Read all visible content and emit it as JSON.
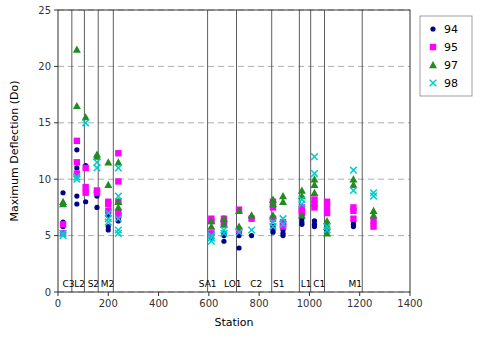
{
  "chart_data": {
    "type": "scatter",
    "xlabel": "Station",
    "ylabel": "Maximum Deflection (Do)",
    "xlim": [
      0,
      1400
    ],
    "ylim": [
      0.0,
      25.0
    ],
    "xticks": [
      0,
      200,
      400,
      600,
      800,
      1000,
      1200,
      1400
    ],
    "yticks": [
      0,
      5,
      10,
      15,
      20,
      25
    ],
    "grid": "y",
    "legend": "right",
    "vlines": [
      55,
      105,
      160,
      220,
      595,
      710,
      850,
      960,
      1005,
      1060,
      1210
    ],
    "annotations": [
      {
        "text": "C3",
        "x": 18,
        "y": 0.3
      },
      {
        "text": "L2",
        "x": 65,
        "y": 0.3
      },
      {
        "text": "S2",
        "x": 118,
        "y": 0.3
      },
      {
        "text": "M2",
        "x": 170,
        "y": 0.3
      },
      {
        "text": "SA1",
        "x": 560,
        "y": 0.3
      },
      {
        "text": "LO1",
        "x": 660,
        "y": 0.3
      },
      {
        "text": "C2",
        "x": 765,
        "y": 0.3
      },
      {
        "text": "S1",
        "x": 855,
        "y": 0.3
      },
      {
        "text": "L1",
        "x": 965,
        "y": 0.3
      },
      {
        "text": "C1",
        "x": 1015,
        "y": 0.3
      },
      {
        "text": "M1",
        "x": 1155,
        "y": 0.3
      }
    ],
    "series": [
      {
        "name": "94",
        "color": "#00008B",
        "marker": "circle",
        "x": [
          20,
          20,
          20,
          75,
          75,
          75,
          75,
          110,
          110,
          110,
          155,
          155,
          200,
          200,
          200,
          200,
          240,
          240,
          240,
          240,
          610,
          610,
          660,
          660,
          660,
          720,
          720,
          720,
          770,
          855,
          855,
          855,
          895,
          895,
          895,
          970,
          970,
          970,
          1020,
          1020,
          1020,
          1070,
          1070,
          1070,
          1175,
          1175,
          1175,
          1255,
          1255
        ],
        "values": [
          8.8,
          6.2,
          5.8,
          12.6,
          11.0,
          8.5,
          7.8,
          11.2,
          9.0,
          8.0,
          8.5,
          7.5,
          5.8,
          5.5,
          7.0,
          6.8,
          6.8,
          7.0,
          6.5,
          6.3,
          5.0,
          4.8,
          5.2,
          5.0,
          4.5,
          5.0,
          5.2,
          3.9,
          5.0,
          5.8,
          5.5,
          5.3,
          5.5,
          5.2,
          5.0,
          6.5,
          6.2,
          6.0,
          6.3,
          6.0,
          5.8,
          5.8,
          5.5,
          5.6,
          6.3,
          6.0,
          5.8,
          6.1,
          5.8
        ]
      },
      {
        "name": "95",
        "color": "#FF00FF",
        "marker": "square",
        "x": [
          20,
          20,
          75,
          75,
          75,
          110,
          110,
          110,
          155,
          155,
          200,
          200,
          200,
          240,
          240,
          240,
          240,
          240,
          610,
          610,
          610,
          660,
          660,
          660,
          720,
          720,
          770,
          855,
          855,
          855,
          895,
          895,
          895,
          970,
          970,
          970,
          1020,
          1020,
          1020,
          1070,
          1070,
          1070,
          1175,
          1175,
          1175,
          1255,
          1255
        ],
        "values": [
          6.0,
          5.2,
          13.4,
          11.5,
          10.5,
          11.0,
          9.3,
          8.8,
          9.0,
          8.8,
          8.0,
          7.8,
          7.2,
          12.3,
          9.8,
          8.0,
          7.0,
          6.8,
          6.5,
          6.3,
          5.2,
          6.5,
          6.2,
          6.0,
          7.3,
          5.5,
          6.5,
          8.0,
          7.5,
          6.5,
          6.2,
          6.0,
          5.8,
          7.5,
          7.2,
          7.0,
          8.2,
          7.8,
          7.5,
          8.0,
          7.5,
          7.0,
          7.5,
          7.2,
          6.5,
          6.3,
          5.8
        ]
      },
      {
        "name": "97",
        "color": "#228B22",
        "marker": "triangle",
        "x": [
          20,
          20,
          75,
          75,
          110,
          155,
          155,
          200,
          200,
          240,
          240,
          240,
          610,
          610,
          660,
          660,
          720,
          720,
          770,
          855,
          855,
          855,
          895,
          895,
          970,
          970,
          970,
          1020,
          1020,
          1020,
          1070,
          1070,
          1070,
          1175,
          1175,
          1255,
          1255
        ],
        "values": [
          8.0,
          7.8,
          21.5,
          16.5,
          15.5,
          12.2,
          12.0,
          11.5,
          9.5,
          11.5,
          8.0,
          7.5,
          6.3,
          5.8,
          6.5,
          6.0,
          7.2,
          5.8,
          6.8,
          8.2,
          7.8,
          6.8,
          8.5,
          8.0,
          9.0,
          8.5,
          6.8,
          10.0,
          9.5,
          8.8,
          6.3,
          5.8,
          5.2,
          10.0,
          9.5,
          7.2,
          6.8
        ]
      },
      {
        "name": "98",
        "color": "#00CCCC",
        "marker": "x",
        "x": [
          20,
          20,
          75,
          75,
          110,
          155,
          155,
          200,
          200,
          200,
          240,
          240,
          240,
          240,
          240,
          610,
          610,
          610,
          660,
          660,
          720,
          770,
          855,
          855,
          895,
          895,
          970,
          970,
          1020,
          1020,
          1070,
          1070,
          1175,
          1175,
          1255,
          1255
        ],
        "values": [
          5.2,
          5.0,
          10.2,
          10.0,
          15.0,
          11.5,
          11.0,
          7.0,
          6.5,
          6.2,
          11.0,
          8.5,
          6.5,
          5.5,
          5.2,
          5.0,
          4.8,
          4.5,
          5.5,
          5.2,
          5.3,
          5.5,
          6.2,
          5.8,
          6.5,
          6.0,
          8.2,
          7.8,
          12.0,
          10.5,
          5.8,
          5.5,
          10.8,
          9.0,
          8.8,
          8.5
        ]
      }
    ]
  }
}
